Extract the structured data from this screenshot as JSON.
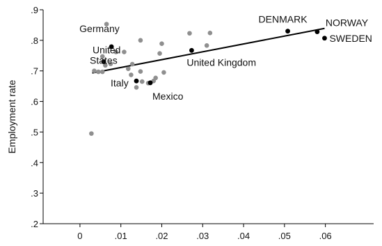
{
  "chart_data": {
    "type": "scatter",
    "title": "",
    "xlabel": "",
    "ylabel": "Employment rate",
    "xlim": [
      -0.009,
      0.0718
    ],
    "ylim": [
      0.2,
      0.9
    ],
    "xticks": [
      0,
      0.01,
      0.02,
      0.03,
      0.04,
      0.05,
      0.06
    ],
    "xtick_labels": [
      "0",
      ".01",
      ".02",
      ".03",
      ".04",
      ".05",
      ".06"
    ],
    "yticks": [
      0.2,
      0.3,
      0.4,
      0.5,
      0.6,
      0.7,
      0.8,
      0.9
    ],
    "ytick_labels": [
      ".2",
      ".3",
      ".4",
      ".5",
      ".6",
      ".7",
      ".8",
      ".9"
    ],
    "grid": false,
    "colors": {
      "highlight": "#000000",
      "other": "#8f8f8f",
      "fit_line": "#000000"
    },
    "fit_line": {
      "x": [
        0.003,
        0.0598
      ],
      "y": [
        0.693,
        0.839
      ]
    },
    "labeled_points": [
      {
        "label": "DENMARK",
        "x": 0.0508,
        "y": 0.83
      },
      {
        "label": "NORWAY",
        "x": 0.058,
        "y": 0.828
      },
      {
        "label": "SWEDEN",
        "x": 0.0598,
        "y": 0.807
      },
      {
        "label": "Germany",
        "x": 0.0077,
        "y": 0.779
      },
      {
        "label": "United Kingdom",
        "x": 0.0273,
        "y": 0.767
      },
      {
        "label": "United",
        "label2": "States",
        "x": 0.0058,
        "y": 0.73
      },
      {
        "label": "Italy",
        "x": 0.0138,
        "y": 0.667
      },
      {
        "label": "Mexico",
        "x": 0.0172,
        "y": 0.661
      }
    ],
    "other_points": {
      "x": [
        0.0065,
        0.0148,
        0.02,
        0.0268,
        0.0318,
        0.0108,
        0.0088,
        0.0055,
        0.0195,
        0.031,
        0.0075,
        0.0062,
        0.0128,
        0.0045,
        0.0055,
        0.0118,
        0.0148,
        0.0205,
        0.0152,
        0.0138,
        0.0185,
        0.018,
        0.0167,
        0.0125,
        0.0035,
        0.0028
      ],
      "y": [
        0.853,
        0.8,
        0.789,
        0.823,
        0.824,
        0.762,
        0.762,
        0.747,
        0.757,
        0.783,
        0.723,
        0.718,
        0.722,
        0.697,
        0.697,
        0.707,
        0.698,
        0.695,
        0.665,
        0.646,
        0.677,
        0.667,
        0.66,
        0.687,
        0.7,
        0.495
      ]
    }
  }
}
